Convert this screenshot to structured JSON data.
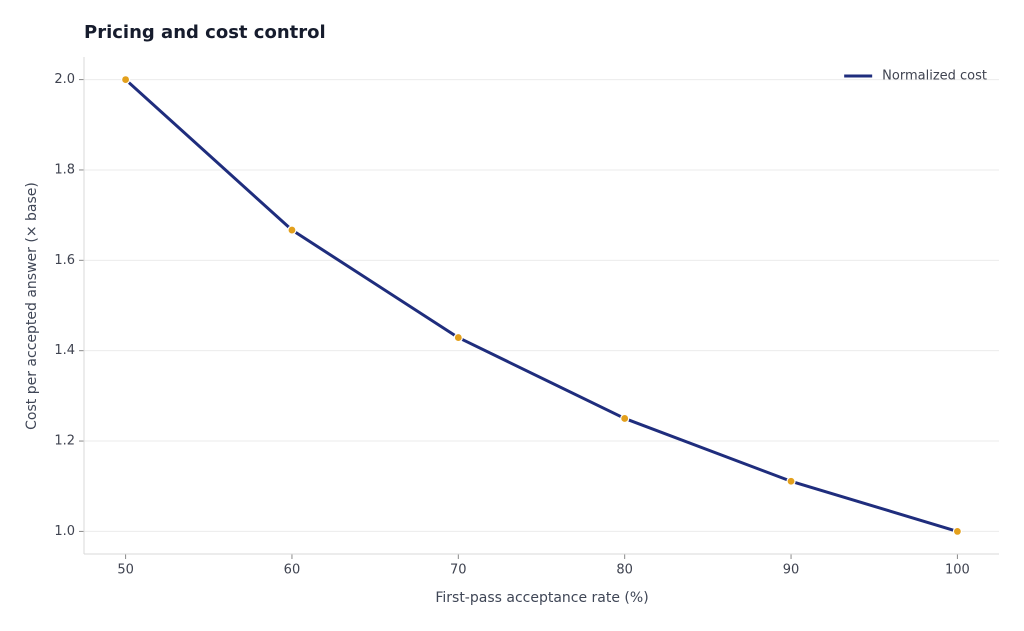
{
  "chart_data": {
    "type": "line",
    "title": "Pricing and cost control",
    "x_label": "First-pass acceptance rate (%)",
    "y_label": "Cost per accepted answer (× base)",
    "x": [
      50,
      60,
      70,
      80,
      90,
      100
    ],
    "series": [
      {
        "name": "Normalized cost",
        "color": "#1f2d7d",
        "marker_color": "#e3a01c",
        "values": [
          2.0,
          1.667,
          1.429,
          1.25,
          1.111,
          1.0
        ]
      }
    ],
    "xlim": [
      47.5,
      102.5
    ],
    "xticks": [
      50,
      60,
      70,
      80,
      90,
      100
    ],
    "ylim": [
      0.95,
      2.05
    ],
    "yticks": [
      {
        "value": 1,
        "label": "1.0"
      },
      1.2,
      1.4,
      1.6,
      1.8,
      {
        "value": 2,
        "label": "2.0"
      }
    ],
    "grid": true,
    "legend": "upper right"
  }
}
